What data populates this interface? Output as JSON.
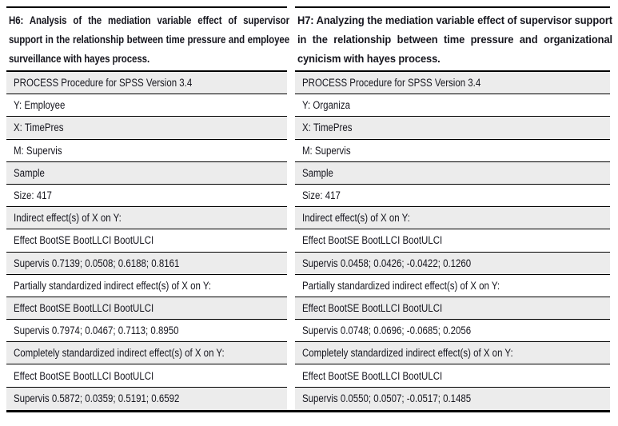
{
  "table": {
    "colors": {
      "row_shaded": "#ececec",
      "row_plain": "#ffffff",
      "rule": "#000000",
      "text": "#16161e"
    },
    "columns": [
      {
        "id": "h6",
        "header": "H6: Analysis of the mediation variable effect of supervisor support in the relationship between time pressure and employee surveillance with hayes process.",
        "rows": [
          "PROCESS Procedure for SPSS Version 3.4",
          "Y: Employee",
          "X: TimePres",
          "M: Supervis",
          "Sample",
          "Size: 417",
          "Indirect effect(s) of X on Y:",
          "Effect BootSE BootLLCI BootULCI",
          "Supervis 0.7139; 0.0508; 0.6188; 0.8161",
          "Partially standardized indirect effect(s) of X on Y:",
          "Effect BootSE BootLLCI BootULCI",
          "Supervis 0.7974; 0.0467; 0.7113; 0.8950",
          "Completely standardized indirect effect(s) of X on Y:",
          "Effect BootSE BootLLCI BootULCI",
          "Supervis 0.5872; 0.0359; 0.5191; 0.6592"
        ]
      },
      {
        "id": "h7",
        "header": "H7: Analyzing the mediation variable effect of supervisor support in the relationship between time pressure and organizational cynicism with hayes process.",
        "rows": [
          "PROCESS Procedure for SPSS Version 3.4",
          "Y: Organiza",
          "X: TimePres",
          "M: Supervis",
          "Sample",
          "Size: 417",
          "Indirect effect(s) of X on Y:",
          "Effect BootSE BootLLCI BootULCI",
          "Supervis 0.0458; 0.0426; -0.0422; 0.1260",
          "Partially standardized indirect effect(s) of X on Y:",
          "Effect BootSE BootLLCI BootULCI",
          "Supervis 0.0748; 0.0696; -0.0685; 0.2056",
          "Completely standardized indirect effect(s) of X on Y:",
          "Effect BootSE BootLLCI BootULCI",
          "Supervis 0.0550; 0.0507; -0.0517; 0.1485"
        ]
      }
    ]
  }
}
